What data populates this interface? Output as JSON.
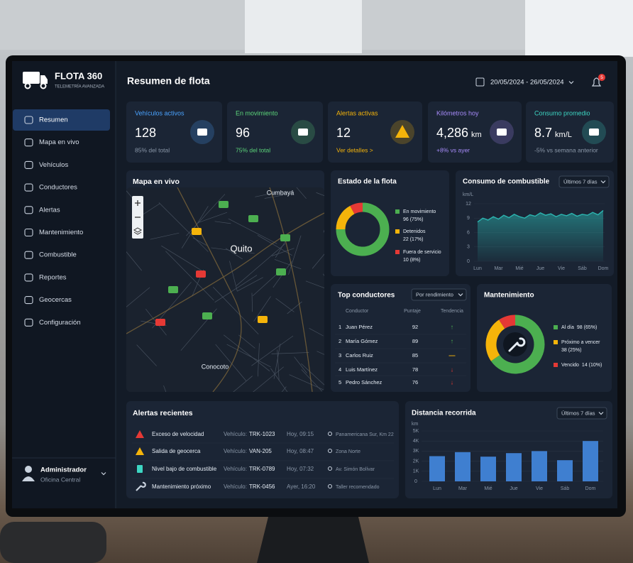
{
  "brand": {
    "name": "FLOTA 360",
    "tagline": "TELEMETRÍA AVANZADA"
  },
  "nav": [
    "Resumen",
    "Mapa en vivo",
    "Vehículos",
    "Conductores",
    "Alertas",
    "Mantenimiento",
    "Combustible",
    "Reportes",
    "Geocercas",
    "Configuración"
  ],
  "user": {
    "name": "Administrador",
    "role": "Oficina Central"
  },
  "header": {
    "title": "Resumen de flota",
    "date_range": "20/05/2024 - 26/05/2024",
    "notifications": "5"
  },
  "kpis": [
    {
      "label": "Vehículos activos",
      "value": "128",
      "sub": "85% del total",
      "color": "#4aa3ff",
      "sub_color": "#8a97a8"
    },
    {
      "label": "En movimiento",
      "value": "96",
      "sub": "75% del total",
      "color": "#5cd67a",
      "sub_color": "#5cd67a"
    },
    {
      "label": "Alertas activas",
      "value": "12",
      "sub": "Ver detalles >",
      "color": "#f5b40a",
      "sub_color": "#f5b40a"
    },
    {
      "label": "Kilómetros hoy",
      "value": "4,286",
      "unit": "km",
      "sub": "+8% vs ayer",
      "color": "#a78bfa",
      "sub_color": "#a78bfa"
    },
    {
      "label": "Consumo promedio",
      "value": "8.7",
      "unit": "km/L",
      "sub": "-5% vs semana anterior",
      "color": "#3dd6c3",
      "sub_color": "#8a97a8"
    }
  ],
  "map": {
    "title": "Mapa en vivo",
    "labels": [
      "Cumbayá",
      "Quito",
      "Conocoto"
    ]
  },
  "fleet_status": {
    "type": "donut",
    "title": "Estado de la flota",
    "categories": [
      "En movimiento",
      "Detenidos",
      "Fuera de servicio"
    ],
    "values": [
      96,
      22,
      10
    ],
    "value_labels": [
      "96 (75%)",
      "22 (17%)",
      "10 (8%)"
    ],
    "colors": [
      "#4caf50",
      "#f5b40a",
      "#e53935"
    ]
  },
  "fuel_consumption": {
    "type": "line",
    "title": "Consumo de combustible",
    "period": "Últimos 7 días",
    "y_label": "km/L",
    "x": [
      0,
      1,
      2,
      3,
      4,
      5,
      6,
      7,
      8,
      9,
      10,
      11,
      12,
      13,
      14,
      15,
      16,
      17,
      18,
      19,
      20,
      21,
      22,
      23,
      24
    ],
    "values": [
      8.2,
      9.0,
      8.6,
      9.3,
      8.8,
      9.6,
      9.1,
      9.8,
      9.3,
      9.0,
      9.7,
      9.4,
      10.1,
      9.6,
      9.9,
      9.3,
      9.8,
      9.5,
      10.0,
      9.4,
      9.8,
      9.6,
      10.2,
      9.7,
      10.6
    ],
    "xlim": [
      0,
      24
    ],
    "xticks": [
      {
        "value": 0,
        "label": "Lun"
      },
      {
        "value": 4,
        "label": "Mar"
      },
      {
        "value": 8,
        "label": "Mié"
      },
      {
        "value": 12,
        "label": "Jue"
      },
      {
        "value": 16,
        "label": "Vie"
      },
      {
        "value": 20,
        "label": "Sáb"
      },
      {
        "value": 24,
        "label": "Dom"
      }
    ],
    "ylim": [
      0,
      12
    ],
    "yticks": [
      0,
      3,
      6,
      9,
      12
    ],
    "color": "#2bb5b0",
    "grid": true
  },
  "top_drivers": {
    "title": "Top conductores",
    "filter": "Por rendimiento",
    "columns": [
      "Conductor",
      "Puntaje",
      "Tendencia"
    ],
    "rows": [
      {
        "rank": "1",
        "name": "Juan Pérez",
        "score": 92,
        "trend": "↑",
        "trend_color": "#4caf50"
      },
      {
        "rank": "2",
        "name": "María Gómez",
        "score": 89,
        "trend": "↑",
        "trend_color": "#4caf50"
      },
      {
        "rank": "3",
        "name": "Carlos Ruiz",
        "score": 85,
        "trend": "—",
        "trend_color": "#f5b40a"
      },
      {
        "rank": "4",
        "name": "Luis Martínez",
        "score": 78,
        "trend": "↓",
        "trend_color": "#e53935"
      },
      {
        "rank": "5",
        "name": "Pedro Sánchez",
        "score": 76,
        "trend": "↓",
        "trend_color": "#e53935"
      }
    ]
  },
  "maintenance": {
    "type": "donut",
    "title": "Mantenimiento",
    "categories": [
      "Al día",
      "Próximo a vencer",
      "Vencido"
    ],
    "values": [
      98,
      38,
      14
    ],
    "value_labels": [
      "98 (65%)",
      "38 (25%)",
      "14 (10%)"
    ],
    "colors": [
      "#4caf50",
      "#f5b40a",
      "#e53935"
    ]
  },
  "alerts": {
    "title": "Alertas recientes",
    "vehicle_label": "Vehículo:",
    "rows": [
      {
        "type": "Exceso de velocidad",
        "vehicle": "TRK-1023",
        "time": "Hoy, 09:15",
        "location": "Panamericana Sur, Km 22"
      },
      {
        "type": "Salida de geocerca",
        "vehicle": "VAN-205",
        "time": "Hoy, 08:47",
        "location": "Zona Norte"
      },
      {
        "type": "Nivel bajo de combustible",
        "vehicle": "TRK-0789",
        "time": "Hoy, 07:32",
        "location": "Av. Simón Bolívar"
      },
      {
        "type": "Mantenimiento próximo",
        "vehicle": "TRK-0456",
        "time": "Ayer, 16:20",
        "location": "Taller recomendado"
      }
    ]
  },
  "distance": {
    "type": "bar",
    "title": "Distancia recorrida",
    "period": "Últimos 7 días",
    "y_label": "km",
    "categories": [
      "Lun",
      "Mar",
      "Mié",
      "Jue",
      "Vie",
      "Sáb",
      "Dom"
    ],
    "values": [
      2500,
      2900,
      2450,
      2800,
      3000,
      2100,
      4000
    ],
    "ylim": [
      0,
      5000
    ],
    "yticks": [
      0,
      {
        "value": 1000,
        "label": "1K"
      },
      {
        "value": 2000,
        "label": "2K"
      },
      {
        "value": 3000,
        "label": "3K"
      },
      {
        "value": 4000,
        "label": "4K"
      },
      {
        "value": 5000,
        "label": "5K"
      }
    ],
    "color": "#3f7fd0",
    "grid": true
  }
}
